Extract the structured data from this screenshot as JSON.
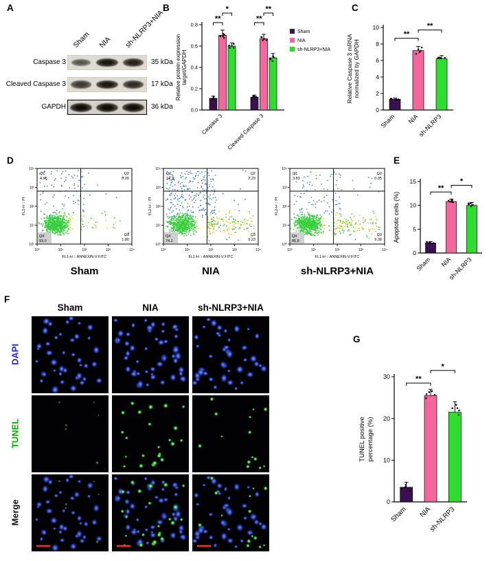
{
  "panels": {
    "a": {
      "label": "A"
    },
    "b": {
      "label": "B"
    },
    "c": {
      "label": "C"
    },
    "d": {
      "label": "D"
    },
    "e": {
      "label": "E"
    },
    "f": {
      "label": "F"
    },
    "g": {
      "label": "G"
    }
  },
  "colors": {
    "sham": "#3a1150",
    "nia": "#f3679c",
    "sh_nlrp3": "#2edd2e",
    "scale_bar": "#ff2a2a",
    "dapi_label": "#2222e8",
    "tunel_label": "#00b400",
    "merge_label": "#151515"
  },
  "panel_a": {
    "lanes": [
      "Sham",
      "NIA",
      "sh-NLRP3+NIA"
    ],
    "rows": [
      {
        "label": "Caspase 3",
        "weight": "35 kDa",
        "band_intensity": [
          0.5,
          0.95,
          0.85
        ]
      },
      {
        "label": "Cleaved Caspase 3",
        "weight": "17 kDa",
        "band_intensity": [
          0.7,
          0.95,
          0.8
        ]
      },
      {
        "label": "GAPDH",
        "weight": "36 kDa",
        "band_intensity": [
          1,
          1,
          1
        ]
      }
    ]
  },
  "chart_data": [
    {
      "id": "panel-b",
      "type": "bar",
      "ylabel_lines": [
        "Relative protein expression",
        "target/GAPDH"
      ],
      "categories": [
        "Caspase 3",
        "Cleaved Caspase 3"
      ],
      "series": [
        {
          "name": "Sham",
          "color": "#3a1150",
          "values": [
            0.11,
            0.12
          ],
          "errors": [
            0.02,
            0.02
          ]
        },
        {
          "name": "NIA",
          "color": "#f3679c",
          "values": [
            0.7,
            0.67
          ],
          "errors": [
            0.05,
            0.04
          ]
        },
        {
          "name": "sh-NLRP3+NIA",
          "color": "#2edd2e",
          "values": [
            0.6,
            0.49
          ],
          "errors": [
            0.03,
            0.04
          ]
        }
      ],
      "ylim": [
        0,
        0.8
      ],
      "yticks": [
        0.0,
        0.2,
        0.4,
        0.6,
        0.8
      ],
      "legend": true,
      "significance": [
        {
          "a": [
            0,
            0
          ],
          "b": [
            0,
            1
          ],
          "label": "**",
          "height": 0.82
        },
        {
          "a": [
            0,
            1
          ],
          "b": [
            0,
            2
          ],
          "label": "*",
          "height": 0.91
        },
        {
          "a": [
            1,
            0
          ],
          "b": [
            1,
            1
          ],
          "label": "**",
          "height": 0.82
        },
        {
          "a": [
            1,
            1
          ],
          "b": [
            1,
            2
          ],
          "label": "**",
          "height": 0.91
        }
      ]
    },
    {
      "id": "panel-c",
      "type": "bar",
      "ylabel_lines": [
        "Relative Caspase 3 mRNA",
        "normalized by GAPDH"
      ],
      "categories": [
        "Sham",
        "NIA",
        "sh-NLRP3"
      ],
      "series": [
        {
          "name": "Caspase 3 mRNA",
          "values": [
            1.3,
            7.2,
            6.2
          ],
          "errors": [
            0.15,
            0.5,
            0.4
          ]
        }
      ],
      "bar_colors": [
        "#3a1150",
        "#f3679c",
        "#2edd2e"
      ],
      "ylim": [
        0,
        10
      ],
      "yticks": [
        0,
        2,
        4,
        6,
        8,
        10
      ],
      "significance": [
        {
          "a": [
            0,
            0
          ],
          "b": [
            1,
            0
          ],
          "label": "**",
          "height": 8.7
        },
        {
          "a": [
            1,
            0
          ],
          "b": [
            2,
            0
          ],
          "label": "**",
          "height": 9.7
        }
      ]
    },
    {
      "id": "panel-e",
      "type": "bar",
      "ylabel_lines": [
        "Apoptotic cells (%)"
      ],
      "categories": [
        "Sham",
        "NIA",
        "sh-NLRP3"
      ],
      "series": [
        {
          "name": "Apoptotic cells",
          "values": [
            2.1,
            10.8,
            10.0
          ],
          "errors": [
            0.3,
            0.5,
            0.6
          ]
        }
      ],
      "bar_colors": [
        "#3a1150",
        "#f3679c",
        "#2edd2e"
      ],
      "ylim": [
        0,
        15
      ],
      "yticks": [
        0,
        5,
        10,
        15
      ],
      "significance": [
        {
          "a": [
            0,
            0
          ],
          "b": [
            1,
            0
          ],
          "label": "**",
          "height": 12.8
        },
        {
          "a": [
            1,
            0
          ],
          "b": [
            2,
            0
          ],
          "label": "*",
          "height": 14.2
        }
      ]
    },
    {
      "id": "panel-g",
      "type": "bar",
      "ylabel_lines": [
        "TUNEL positive",
        "percentage (%)"
      ],
      "categories": [
        "Sham",
        "NIA",
        "sh-NLRP3"
      ],
      "series": [
        {
          "name": "TUNEL positive",
          "values": [
            3.5,
            25.5,
            21.5
          ],
          "errors": [
            1.2,
            1.5,
            2.5
          ]
        }
      ],
      "bar_colors": [
        "#3a1150",
        "#f3679c",
        "#2edd2e"
      ],
      "ylim": [
        0,
        30
      ],
      "yticks": [
        0,
        10,
        20,
        30
      ],
      "significance": [
        {
          "a": [
            0,
            0
          ],
          "b": [
            1,
            0
          ],
          "label": "**",
          "height": 28.5
        },
        {
          "a": [
            1,
            0
          ],
          "b": [
            2,
            0
          ],
          "label": "*",
          "height": 31.5
        }
      ]
    }
  ],
  "panel_d": {
    "xlabel": "FL1-H :: ANNEXIN-V FITC",
    "ylabel": "FL2-H :: PI",
    "plots": [
      {
        "name": "Sham",
        "q1": "4.95",
        "q2": "0.26",
        "q3": "1.80",
        "q4": "93.0"
      },
      {
        "name": "NIA",
        "q1": "14.3",
        "q2": "2.23",
        "q3": "9.23",
        "q4": "74.2"
      },
      {
        "name": "sh-NLRP3+NIA",
        "q1": "3.83",
        "q2": "0.95",
        "q3": "9.38",
        "q4": "85.8"
      }
    ]
  },
  "panel_f": {
    "columns": [
      "Sham",
      "NIA",
      "sh-NLRP3+NIA"
    ],
    "rows": [
      {
        "label": "DAPI",
        "color": "#2222e8"
      },
      {
        "label": "TUNEL",
        "color": "#00b400"
      },
      {
        "label": "Merge",
        "color": "#151515"
      }
    ]
  }
}
